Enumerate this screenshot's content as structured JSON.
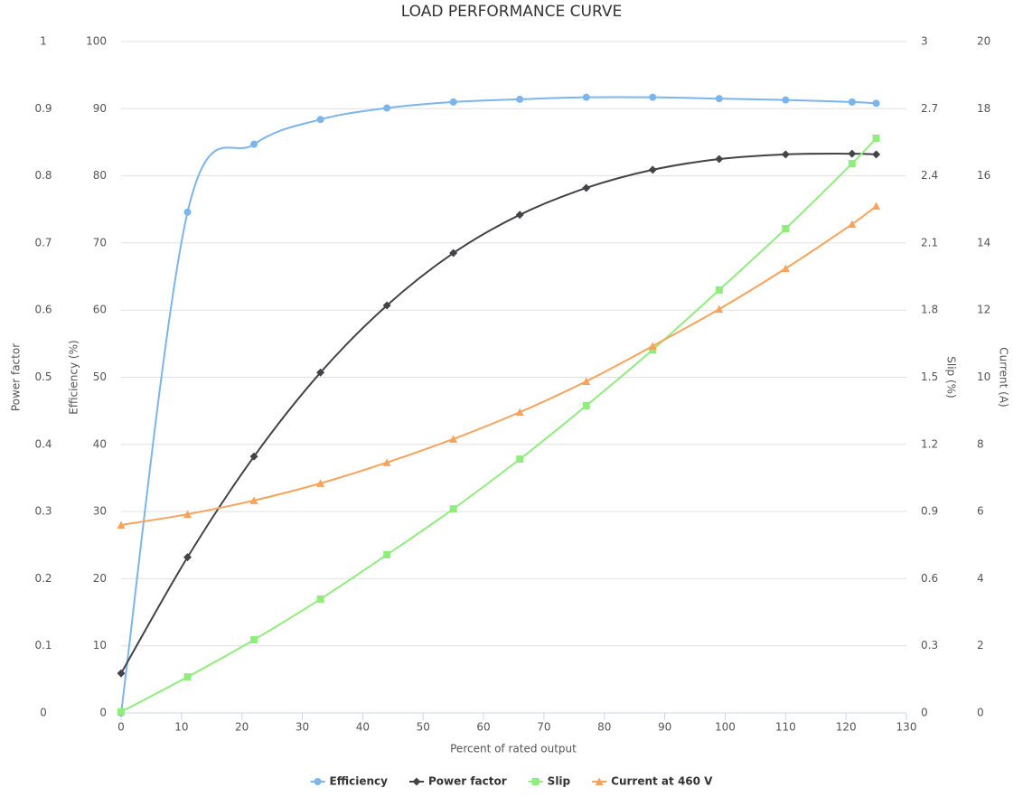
{
  "chart_data": {
    "type": "line",
    "title": "LOAD PERFORMANCE CURVE",
    "xlabel": "Percent of rated output",
    "xlim": [
      0,
      130
    ],
    "xticks": [
      0,
      10,
      20,
      30,
      40,
      50,
      60,
      70,
      80,
      90,
      100,
      110,
      120,
      130
    ],
    "grid": true,
    "legend": "bottom",
    "axes": [
      {
        "label": "Power factor",
        "lim": [
          0,
          1
        ],
        "ticks": [
          0,
          0.1,
          0.2,
          0.3,
          0.4,
          0.5,
          0.6,
          0.7,
          0.8,
          0.9,
          1
        ]
      },
      {
        "label": "Efficiency (%)",
        "lim": [
          0,
          100
        ],
        "ticks": [
          0,
          10,
          20,
          30,
          40,
          50,
          60,
          70,
          80,
          90,
          100
        ]
      },
      {
        "label": "Slip (%)",
        "lim": [
          0,
          3
        ],
        "ticks": [
          0,
          0.3,
          0.6,
          0.9,
          1.2,
          1.5,
          1.8,
          2.1,
          2.4,
          2.7,
          3
        ]
      },
      {
        "label": "Current (A)",
        "lim": [
          0,
          20
        ],
        "ticks": [
          0,
          2,
          4,
          6,
          8,
          10,
          12,
          14,
          16,
          18,
          20
        ]
      }
    ],
    "x": [
      0,
      11,
      22,
      33,
      44,
      55,
      66,
      77,
      88,
      99,
      110,
      121,
      125
    ],
    "series": [
      {
        "name": "Efficiency",
        "color": "#7cb5ec",
        "marker": "circle",
        "axis": 1,
        "values": [
          0,
          74.6,
          84.7,
          88.4,
          90.1,
          91.0,
          91.4,
          91.7,
          91.7,
          91.5,
          91.3,
          91.0,
          90.8
        ]
      },
      {
        "name": "Power factor",
        "color": "#434348",
        "marker": "diamond",
        "axis": 0,
        "values": [
          0.059,
          0.232,
          0.382,
          0.507,
          0.607,
          0.685,
          0.742,
          0.782,
          0.809,
          0.825,
          0.832,
          0.833,
          0.832
        ]
      },
      {
        "name": "Slip",
        "color": "#90ed7d",
        "marker": "square",
        "axis": 2,
        "values": [
          0.005,
          0.161,
          0.327,
          0.509,
          0.707,
          0.912,
          1.134,
          1.373,
          1.623,
          1.89,
          2.164,
          2.455,
          2.568
        ]
      },
      {
        "name": "Current at 460 V",
        "color": "#f7a35c",
        "marker": "triangle",
        "axis": 3,
        "values": [
          5.6,
          5.92,
          6.33,
          6.84,
          7.46,
          8.16,
          8.96,
          9.88,
          10.93,
          12.03,
          13.24,
          14.56,
          15.1
        ]
      }
    ]
  }
}
